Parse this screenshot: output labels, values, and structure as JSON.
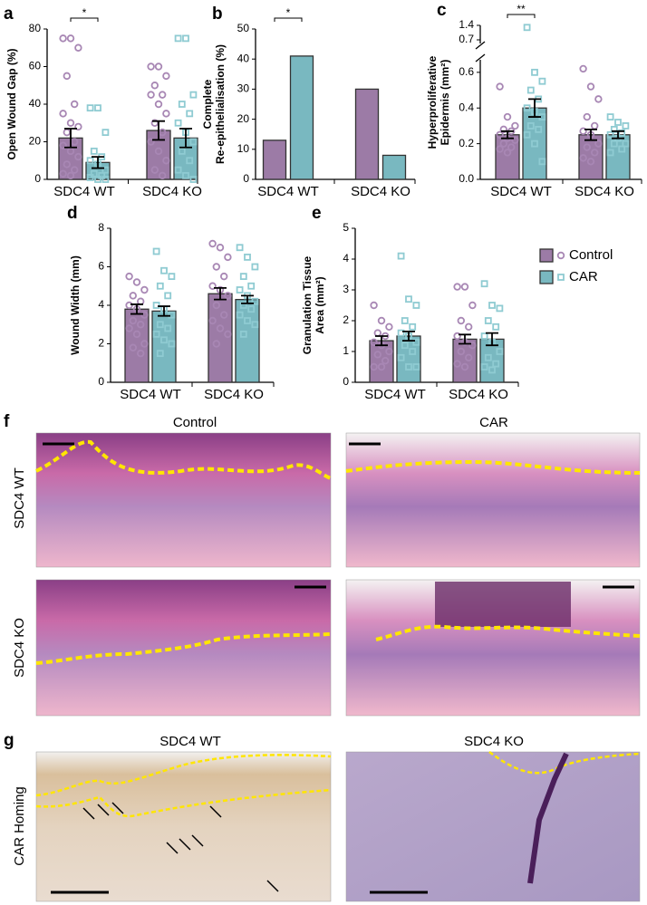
{
  "chart_data": [
    {
      "type": "bar",
      "label": "a",
      "ylabel": [
        "Open Wound Gap (%)"
      ],
      "categories": [
        "SDC4 WT",
        "SDC4 KO"
      ],
      "ylim": [
        0,
        80
      ],
      "yticks": [
        0,
        20,
        40,
        60,
        80
      ],
      "annotation": "*",
      "series": [
        {
          "name": "Control",
          "color": "#9c7ba6",
          "point_color": "#a887b4",
          "marker": "circle",
          "values": [
            22,
            26
          ],
          "errors": [
            5,
            5
          ],
          "points": [
            [
              75,
              75,
              70,
              55,
              40,
              35,
              30,
              28,
              25,
              20,
              18,
              15,
              12,
              8,
              5,
              3,
              2
            ],
            [
              60,
              60,
              55,
              50,
              45,
              45,
              40,
              35,
              30,
              25,
              20,
              15,
              10,
              5,
              2
            ]
          ]
        },
        {
          "name": "CAR",
          "color": "#79b8c0",
          "point_color": "#8fcbd2",
          "marker": "square",
          "values": [
            9,
            22
          ],
          "errors": [
            3,
            5
          ],
          "points": [
            [
              38,
              38,
              25,
              15,
              12,
              10,
              8,
              5,
              3,
              2,
              1,
              0,
              0
            ],
            [
              75,
              75,
              45,
              40,
              35,
              30,
              25,
              20,
              15,
              10,
              5,
              2,
              0
            ]
          ]
        }
      ]
    },
    {
      "type": "bar",
      "label": "b",
      "ylabel": [
        "Complete",
        "Re-epithelialisation (%)"
      ],
      "categories": [
        "SDC4 WT",
        "SDC4 KO"
      ],
      "ylim": [
        0,
        50
      ],
      "yticks": [
        0,
        10,
        20,
        30,
        40,
        50
      ],
      "annotation": "*",
      "series": [
        {
          "name": "Control",
          "color": "#9c7ba6",
          "values": [
            13,
            30
          ]
        },
        {
          "name": "CAR",
          "color": "#79b8c0",
          "values": [
            41,
            8
          ]
        }
      ]
    },
    {
      "type": "bar",
      "label": "c",
      "ylabel": [
        "Hyperproliferative",
        "Epidermis (mm²)"
      ],
      "categories": [
        "SDC4 WT",
        "SDC4 KO"
      ],
      "ylim": [
        0,
        0.65
      ],
      "yticks": [
        {
          "value": 0,
          "label": "0.0"
        },
        0.2,
        0.4,
        0.6
      ],
      "y_upper": {
        "ylim": [
          0.7,
          1.4
        ],
        "yticks": [
          0.7,
          1.4
        ]
      },
      "annotation": "**",
      "series": [
        {
          "name": "Control",
          "color": "#9c7ba6",
          "point_color": "#a887b4",
          "marker": "circle",
          "values": [
            0.25,
            0.25
          ],
          "errors": [
            0.02,
            0.03
          ],
          "points": [
            [
              0.52,
              0.35,
              0.3,
              0.28,
              0.27,
              0.25,
              0.23,
              0.22,
              0.2,
              0.18,
              0.17,
              0.15
            ],
            [
              0.62,
              0.52,
              0.45,
              0.35,
              0.3,
              0.27,
              0.25,
              0.2,
              0.18,
              0.15,
              0.12,
              0.1
            ]
          ]
        },
        {
          "name": "CAR",
          "color": "#79b8c0",
          "point_color": "#8fcbd2",
          "marker": "square",
          "values": [
            0.4,
            0.25
          ],
          "errors": [
            0.05,
            0.02
          ],
          "points": [
            [
              1.3,
              0.6,
              0.55,
              0.5,
              0.45,
              0.4,
              0.38,
              0.35,
              0.3,
              0.28,
              0.25,
              0.2,
              0.1
            ],
            [
              0.35,
              0.32,
              0.3,
              0.28,
              0.26,
              0.25,
              0.23,
              0.2,
              0.2,
              0.17,
              0.15
            ]
          ]
        }
      ]
    },
    {
      "type": "bar",
      "label": "d",
      "ylabel": [
        "Wound Width (mm)"
      ],
      "categories": [
        "SDC4 WT",
        "SDC4 KO"
      ],
      "ylim": [
        0,
        8
      ],
      "yticks": [
        0,
        2,
        4,
        6,
        8
      ],
      "series": [
        {
          "name": "Control",
          "color": "#9c7ba6",
          "point_color": "#a887b4",
          "marker": "circle",
          "values": [
            3.8,
            4.6
          ],
          "errors": [
            0.25,
            0.3
          ],
          "points": [
            [
              5.5,
              5.2,
              4.8,
              4.5,
              4.2,
              4,
              3.8,
              3.5,
              3.2,
              3,
              2.8,
              2.5,
              2,
              1.8,
              1.5
            ],
            [
              7.2,
              7,
              6.5,
              6,
              5.5,
              5,
              4.8,
              4.5,
              4,
              3.5,
              3.2,
              2.8,
              2.5,
              2
            ]
          ]
        },
        {
          "name": "CAR",
          "color": "#79b8c0",
          "point_color": "#8fcbd2",
          "marker": "square",
          "values": [
            3.7,
            4.3
          ],
          "errors": [
            0.25,
            0.2
          ],
          "points": [
            [
              6.8,
              5.8,
              5.5,
              5,
              4.5,
              4,
              3.8,
              3.5,
              3,
              2.8,
              2.5,
              2.2,
              2,
              1.5
            ],
            [
              7,
              6.5,
              6,
              5.5,
              5,
              4.8,
              4.5,
              4.2,
              4,
              3.8,
              3.5,
              3.2,
              3,
              2.5
            ]
          ]
        }
      ]
    },
    {
      "type": "bar",
      "label": "e",
      "ylabel": [
        "Granulation Tissue",
        "Area (mm²)"
      ],
      "categories": [
        "SDC4 WT",
        "SDC4 KO"
      ],
      "ylim": [
        0,
        5
      ],
      "yticks": [
        0,
        1,
        2,
        3,
        4,
        5
      ],
      "legend": "right",
      "series": [
        {
          "name": "Control",
          "color": "#9c7ba6",
          "point_color": "#a887b4",
          "marker": "circle",
          "values": [
            1.35,
            1.4
          ],
          "errors": [
            0.15,
            0.15
          ],
          "points": [
            [
              2.5,
              2,
              1.8,
              1.6,
              1.5,
              1.3,
              1.2,
              1,
              0.9,
              0.7,
              0.5,
              0.5
            ],
            [
              3.1,
              3.1,
              2.5,
              2,
              1.8,
              1.5,
              1.3,
              1.2,
              1,
              0.8,
              0.6,
              0.5
            ]
          ]
        },
        {
          "name": "CAR",
          "color": "#79b8c0",
          "point_color": "#8fcbd2",
          "marker": "square",
          "values": [
            1.5,
            1.4
          ],
          "errors": [
            0.15,
            0.2
          ],
          "points": [
            [
              4.1,
              2.7,
              2.5,
              2,
              1.8,
              1.6,
              1.5,
              1.3,
              1.2,
              1,
              0.8,
              0.5,
              0.5
            ],
            [
              3.2,
              2.5,
              2.4,
              2,
              1.8,
              1.5,
              1.3,
              1,
              0.8,
              0.6,
              0.5,
              0.4
            ]
          ]
        }
      ]
    }
  ],
  "panel_f": {
    "label": "f",
    "columns": [
      "Control",
      "CAR"
    ],
    "rows": [
      "SDC4 WT",
      "SDC4 KO"
    ]
  },
  "panel_g": {
    "label": "g",
    "columns": [
      "SDC4 WT",
      "SDC4 KO"
    ],
    "row": "CAR Homing"
  }
}
